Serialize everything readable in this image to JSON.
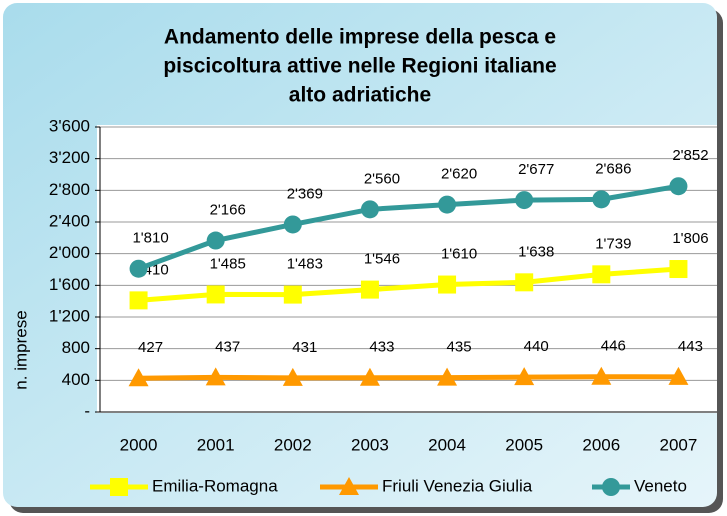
{
  "chart_data": {
    "type": "line",
    "title": [
      "Andamento delle imprese della pesca e",
      "piscicoltura attive nelle Regioni italiane",
      "alto adriatiche"
    ],
    "ylabel": "n. imprese",
    "categories": [
      "2000",
      "2001",
      "2002",
      "2003",
      "2004",
      "2005",
      "2006",
      "2007"
    ],
    "ylim": [
      0,
      3600
    ],
    "yticks": [
      {
        "value": 0,
        "label": "-"
      },
      400,
      800,
      {
        "value": 1200,
        "label": "1'200"
      },
      {
        "value": 1600,
        "label": "1'600"
      },
      {
        "value": 2000,
        "label": "2'000"
      },
      {
        "value": 2400,
        "label": "2'400"
      },
      {
        "value": 2800,
        "label": "2'800"
      },
      {
        "value": 3200,
        "label": "3'200"
      },
      {
        "value": 3600,
        "label": "3'600"
      }
    ],
    "grid": true,
    "legend": "bottom",
    "series": [
      {
        "name": "Emilia-Romagna",
        "color": "#ffff00",
        "marker": "square",
        "values": [
          1410,
          1485,
          1483,
          1546,
          1610,
          1638,
          1739,
          1806
        ],
        "value_labels": [
          "1'410",
          "1'485",
          "1'483",
          "1'546",
          "1'610",
          "1'638",
          "1'739",
          "1'806"
        ]
      },
      {
        "name": "Friuli Venezia Giulia",
        "color": "#ff9900",
        "marker": "triangle",
        "values": [
          427,
          437,
          431,
          433,
          435,
          440,
          446,
          443
        ]
      },
      {
        "name": "Veneto",
        "color": "#339999",
        "marker": "circle",
        "values": [
          1810,
          2166,
          2369,
          2560,
          2620,
          2677,
          2686,
          2852
        ],
        "value_labels": [
          "1'810",
          "2'166",
          "2'369",
          "2'560",
          "2'620",
          "2'677",
          "2'686",
          "2'852"
        ]
      }
    ]
  }
}
